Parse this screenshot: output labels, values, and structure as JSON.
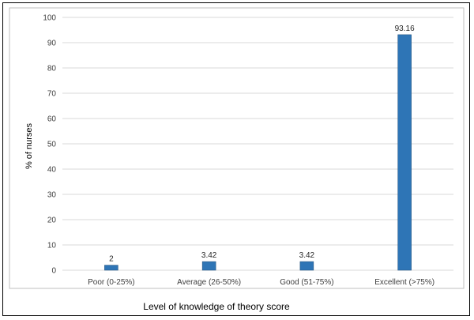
{
  "chart_data": {
    "type": "bar",
    "categories": [
      "Poor (0-25%)",
      "Average (26-50%)",
      "Good (51-75%)",
      "Excellent (>75%)"
    ],
    "values": [
      2,
      3.42,
      3.42,
      93.16
    ],
    "data_labels": [
      "2",
      "3.42",
      "3.42",
      "93.16"
    ],
    "title": "",
    "xlabel": "Level of knowledge of theory score",
    "ylabel": "% of nurses",
    "ylim": [
      0,
      100
    ],
    "yticks": [
      0,
      10,
      20,
      30,
      40,
      50,
      60,
      70,
      80,
      90,
      100
    ],
    "grid": true,
    "legend": "none",
    "colors": {
      "bar": "#2e75b6",
      "bar_edge": "#1f4e79",
      "grid": "#d9d9d9",
      "frame": "#bfbfbf"
    }
  }
}
